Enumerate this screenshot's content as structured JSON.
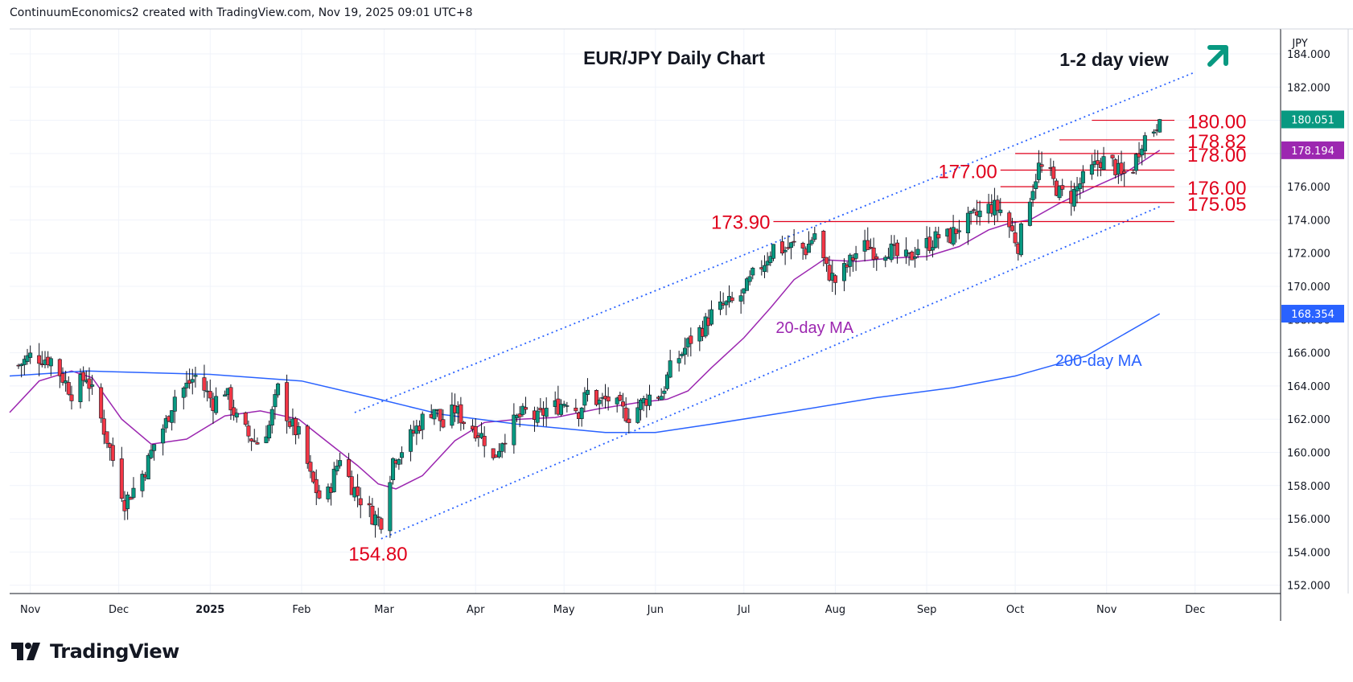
{
  "header": {
    "credit": "ContinuumEconomics2 created with TradingView.com, Nov 19, 2025 09:01 UTC+8"
  },
  "brand": {
    "logo_text": "TradingView"
  },
  "currency": "JPY",
  "chart_data": {
    "type": "candlestick",
    "title": "EUR/JPY Daily Chart",
    "subtitle": "1-2 day view",
    "view_direction": "up",
    "ylim": [
      151.5,
      185.5
    ],
    "y_ticks": [
      "152.000",
      "154.000",
      "156.000",
      "158.000",
      "160.000",
      "162.000",
      "164.000",
      "166.000",
      "168.000",
      "170.000",
      "172.000",
      "174.000",
      "176.000",
      "178.000",
      "180.000",
      "182.000",
      "184.000"
    ],
    "x_ticks": [
      {
        "label": "Nov",
        "date": "2024-11-01"
      },
      {
        "label": "Dec",
        "date": "2024-12-01"
      },
      {
        "label": "2025",
        "date": "2025-01-01",
        "bold": true
      },
      {
        "label": "Feb",
        "date": "2025-02-01"
      },
      {
        "label": "Mar",
        "date": "2025-03-01"
      },
      {
        "label": "Apr",
        "date": "2025-04-01"
      },
      {
        "label": "May",
        "date": "2025-05-01"
      },
      {
        "label": "Jun",
        "date": "2025-06-01"
      },
      {
        "label": "Jul",
        "date": "2025-07-01"
      },
      {
        "label": "Aug",
        "date": "2025-08-01"
      },
      {
        "label": "Sep",
        "date": "2025-09-01"
      },
      {
        "label": "Oct",
        "date": "2025-10-01"
      },
      {
        "label": "Nov",
        "date": "2025-11-01"
      },
      {
        "label": "Dec",
        "date": "2025-12-01"
      }
    ],
    "date_range": [
      "2024-10-25",
      "2025-12-30"
    ],
    "price_path": [
      [
        "2024-10-25",
        164.8
      ],
      [
        "2024-11-01",
        165.8
      ],
      [
        "2024-11-08",
        165.6
      ],
      [
        "2024-11-12",
        164.5
      ],
      [
        "2024-11-15",
        163.6
      ],
      [
        "2024-11-20",
        164.6
      ],
      [
        "2024-11-24",
        162.6
      ],
      [
        "2024-11-28",
        160.2
      ],
      [
        "2024-12-03",
        157.0
      ],
      [
        "2024-12-06",
        157.8
      ],
      [
        "2024-12-10",
        159.0
      ],
      [
        "2024-12-13",
        160.5
      ],
      [
        "2024-12-17",
        161.8
      ],
      [
        "2024-12-20",
        163.4
      ],
      [
        "2024-12-24",
        164.0
      ],
      [
        "2024-12-27",
        164.6
      ],
      [
        "2025-01-02",
        163.0
      ],
      [
        "2025-01-06",
        163.8
      ],
      [
        "2025-01-10",
        162.0
      ],
      [
        "2025-01-14",
        161.0
      ],
      [
        "2025-01-17",
        160.6
      ],
      [
        "2025-01-21",
        161.6
      ],
      [
        "2025-01-24",
        163.8
      ],
      [
        "2025-01-28",
        161.8
      ],
      [
        "2025-02-01",
        160.8
      ],
      [
        "2025-02-04",
        158.5
      ],
      [
        "2025-02-07",
        157.3
      ],
      [
        "2025-02-10",
        157.5
      ],
      [
        "2025-02-14",
        159.8
      ],
      [
        "2025-02-18",
        158.0
      ],
      [
        "2025-02-21",
        157.2
      ],
      [
        "2025-02-25",
        156.2
      ],
      [
        "2025-02-28",
        155.9
      ],
      [
        "2025-03-04",
        159.6
      ],
      [
        "2025-03-07",
        160.2
      ],
      [
        "2025-03-11",
        161.2
      ],
      [
        "2025-03-14",
        162.0
      ],
      [
        "2025-03-18",
        162.7
      ],
      [
        "2025-03-21",
        161.6
      ],
      [
        "2025-03-25",
        162.6
      ],
      [
        "2025-03-28",
        161.9
      ],
      [
        "2025-04-01",
        161.4
      ],
      [
        "2025-04-04",
        160.8
      ],
      [
        "2025-04-07",
        159.5
      ],
      [
        "2025-04-10",
        160.8
      ],
      [
        "2025-04-15",
        162.0
      ],
      [
        "2025-04-18",
        162.4
      ],
      [
        "2025-04-22",
        162.0
      ],
      [
        "2025-04-25",
        162.6
      ],
      [
        "2025-04-29",
        162.8
      ],
      [
        "2025-05-02",
        163.2
      ],
      [
        "2025-05-06",
        162.5
      ],
      [
        "2025-05-09",
        163.6
      ],
      [
        "2025-05-13",
        163.0
      ],
      [
        "2025-05-16",
        163.2
      ],
      [
        "2025-05-20",
        162.6
      ],
      [
        "2025-05-23",
        162.2
      ],
      [
        "2025-05-27",
        162.9
      ],
      [
        "2025-05-30",
        163.4
      ],
      [
        "2025-06-03",
        163.5
      ],
      [
        "2025-06-06",
        165.0
      ],
      [
        "2025-06-10",
        166.0
      ],
      [
        "2025-06-13",
        166.8
      ],
      [
        "2025-06-17",
        167.5
      ],
      [
        "2025-06-20",
        168.3
      ],
      [
        "2025-06-24",
        168.8
      ],
      [
        "2025-06-27",
        169.0
      ],
      [
        "2025-07-01",
        169.6
      ],
      [
        "2025-07-04",
        170.6
      ],
      [
        "2025-07-08",
        171.5
      ],
      [
        "2025-07-11",
        172.4
      ],
      [
        "2025-07-15",
        172.2
      ],
      [
        "2025-07-18",
        172.5
      ],
      [
        "2025-07-22",
        172.2
      ],
      [
        "2025-07-25",
        173.2
      ],
      [
        "2025-07-29",
        171.0
      ],
      [
        "2025-08-01",
        170.3
      ],
      [
        "2025-08-05",
        171.2
      ],
      [
        "2025-08-08",
        172.0
      ],
      [
        "2025-08-12",
        172.5
      ],
      [
        "2025-08-15",
        172.0
      ],
      [
        "2025-08-19",
        172.3
      ],
      [
        "2025-08-22",
        171.8
      ],
      [
        "2025-08-26",
        171.6
      ],
      [
        "2025-08-29",
        172.4
      ],
      [
        "2025-09-02",
        172.6
      ],
      [
        "2025-09-05",
        173.0
      ],
      [
        "2025-09-09",
        173.0
      ],
      [
        "2025-09-12",
        173.6
      ],
      [
        "2025-09-16",
        174.0
      ],
      [
        "2025-09-19",
        174.4
      ],
      [
        "2025-09-23",
        174.8
      ],
      [
        "2025-09-26",
        174.6
      ],
      [
        "2025-09-29",
        173.6
      ],
      [
        "2025-10-02",
        172.5
      ],
      [
        "2025-10-06",
        175.5
      ],
      [
        "2025-10-09",
        177.2
      ],
      [
        "2025-10-13",
        176.6
      ],
      [
        "2025-10-16",
        175.6
      ],
      [
        "2025-10-20",
        175.4
      ],
      [
        "2025-10-23",
        176.2
      ],
      [
        "2025-10-27",
        177.0
      ],
      [
        "2025-10-30",
        177.6
      ],
      [
        "2025-11-03",
        177.4
      ],
      [
        "2025-11-06",
        176.6
      ],
      [
        "2025-11-10",
        177.2
      ],
      [
        "2025-11-13",
        178.8
      ],
      [
        "2025-11-17",
        179.5
      ],
      [
        "2025-11-19",
        180.05
      ]
    ],
    "moving_averages": [
      {
        "name": "20-day MA",
        "color": "#9c27b0",
        "last": 178.194,
        "last_label": "178.194",
        "path": [
          [
            "2024-10-25",
            162.4
          ],
          [
            "2024-11-04",
            164.3
          ],
          [
            "2024-11-15",
            164.9
          ],
          [
            "2024-11-22",
            164.5
          ],
          [
            "2024-12-02",
            162.0
          ],
          [
            "2024-12-12",
            160.5
          ],
          [
            "2024-12-24",
            160.8
          ],
          [
            "2025-01-06",
            162.2
          ],
          [
            "2025-01-18",
            162.5
          ],
          [
            "2025-01-31",
            162.0
          ],
          [
            "2025-02-10",
            160.6
          ],
          [
            "2025-02-20",
            159.2
          ],
          [
            "2025-02-27",
            158.1
          ],
          [
            "2025-03-05",
            157.8
          ],
          [
            "2025-03-14",
            158.6
          ],
          [
            "2025-03-25",
            160.7
          ],
          [
            "2025-04-04",
            161.8
          ],
          [
            "2025-04-16",
            162.0
          ],
          [
            "2025-04-28",
            162.1
          ],
          [
            "2025-05-12",
            162.6
          ],
          [
            "2025-05-26",
            163.0
          ],
          [
            "2025-06-05",
            163.2
          ],
          [
            "2025-06-12",
            163.7
          ],
          [
            "2025-06-20",
            165.1
          ],
          [
            "2025-07-01",
            166.9
          ],
          [
            "2025-07-10",
            168.7
          ],
          [
            "2025-07-18",
            170.4
          ],
          [
            "2025-07-28",
            171.6
          ],
          [
            "2025-08-08",
            171.5
          ],
          [
            "2025-08-20",
            171.7
          ],
          [
            "2025-09-01",
            171.8
          ],
          [
            "2025-09-12",
            172.4
          ],
          [
            "2025-09-22",
            173.4
          ],
          [
            "2025-09-29",
            173.8
          ],
          [
            "2025-10-06",
            174.0
          ],
          [
            "2025-10-16",
            175.0
          ],
          [
            "2025-10-28",
            176.0
          ],
          [
            "2025-11-07",
            176.8
          ],
          [
            "2025-11-19",
            178.19
          ]
        ]
      },
      {
        "name": "200-day MA",
        "color": "#2962ff",
        "last": 168.354,
        "last_label": "168.354",
        "path": [
          [
            "2024-10-25",
            164.6
          ],
          [
            "2024-11-20",
            164.9
          ],
          [
            "2025-01-01",
            164.7
          ],
          [
            "2025-02-01",
            164.3
          ],
          [
            "2025-02-25",
            163.3
          ],
          [
            "2025-03-20",
            162.3
          ],
          [
            "2025-04-15",
            161.7
          ],
          [
            "2025-05-15",
            161.2
          ],
          [
            "2025-06-01",
            161.2
          ],
          [
            "2025-06-20",
            161.7
          ],
          [
            "2025-07-15",
            162.4
          ],
          [
            "2025-08-15",
            163.3
          ],
          [
            "2025-09-10",
            163.9
          ],
          [
            "2025-10-01",
            164.6
          ],
          [
            "2025-10-25",
            165.8
          ],
          [
            "2025-11-19",
            168.35
          ]
        ]
      }
    ],
    "current_price": {
      "value": 180.051,
      "label": "180.051"
    },
    "levels": [
      {
        "label": "180.00",
        "value": 180.0,
        "from": "2025-10-27"
      },
      {
        "label": "178.82",
        "value": 178.82,
        "from": "2025-10-16"
      },
      {
        "label": "178.00",
        "value": 178.0,
        "from": "2025-10-01"
      },
      {
        "label": "177.00",
        "value": 177.0,
        "from": "2025-09-26"
      },
      {
        "label": "176.00",
        "value": 176.0,
        "from": "2025-09-26"
      },
      {
        "label": "175.05",
        "value": 175.05,
        "from": "2025-09-18"
      },
      {
        "label": "173.90",
        "value": 173.9,
        "from": "2025-07-11"
      }
    ],
    "annotations": [
      {
        "text": "154.80",
        "value": 154.8,
        "date": "2025-02-28"
      },
      {
        "text": "173.90",
        "value": 173.9,
        "date": "2025-07-25"
      },
      {
        "text": "20-day MA",
        "color": "#9c27b0"
      },
      {
        "text": "200-day MA",
        "color": "#2962ff"
      }
    ],
    "channel": {
      "upper": [
        [
          "2025-02-19",
          162.4
        ],
        [
          "2025-12-01",
          182.9
        ]
      ],
      "lower": [
        [
          "2025-02-28",
          154.8
        ],
        [
          "2025-11-19",
          174.8
        ]
      ]
    }
  }
}
